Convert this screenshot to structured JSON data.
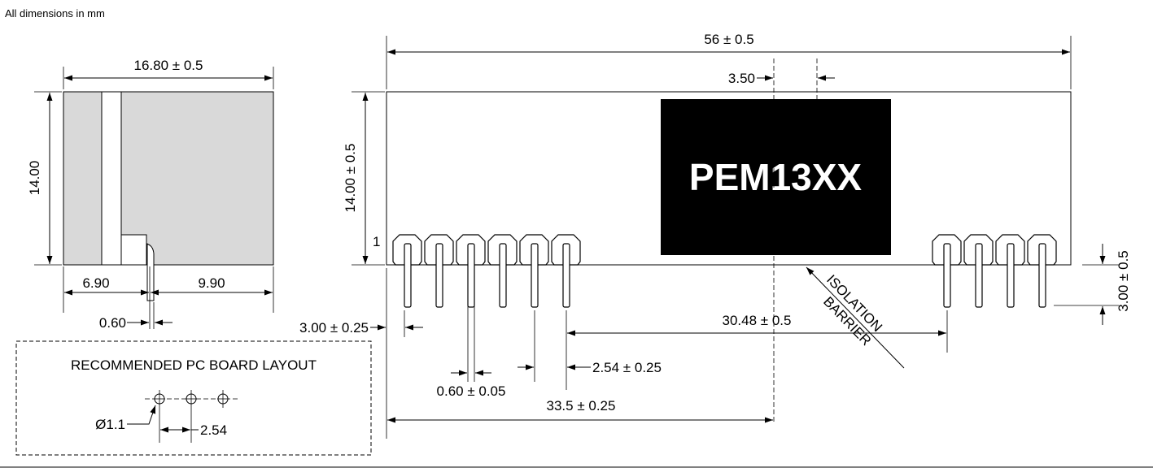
{
  "note": "All dimensions in mm",
  "side_view": {
    "width": "16.80 ± 0.5",
    "height": "14.00",
    "left_offset": "6.90",
    "right_offset": "9.90",
    "pin_width": "0.60"
  },
  "front_view": {
    "length": "56 ± 0.5",
    "barrier_gap": "3.50",
    "height": "14.00 ± 0.5",
    "pin1_marker": "1",
    "label": "PEM13XX",
    "pin_length": "3.00 ± 0.5",
    "pin_standoff": "3.00 ± 0.25",
    "pin_span": "30.48  ± 0.5",
    "pin_pitch": "2.54 ± 0.25",
    "pin_diameter": "0.60  ± 0.05",
    "barrier_position": "33.5 ± 0.25",
    "isolation": "ISOLATION",
    "barrier": "BARRIER"
  },
  "pcb_layout": {
    "title": "RECOMMENDED PC BOARD LAYOUT",
    "hole_diameter": "Ø1.1",
    "pitch": "2.54"
  },
  "colors": {
    "body_fill": "#d9d9d9",
    "label_bg": "#000000",
    "label_text": "#ffffff"
  }
}
